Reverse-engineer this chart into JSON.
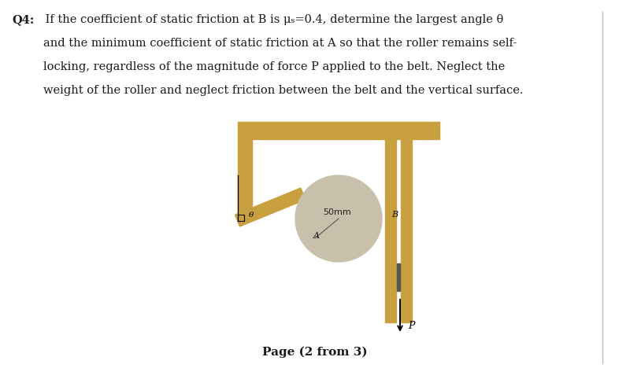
{
  "title_bold": "Q4:",
  "title_text": " If the coefficient of static friction at B is μₛ=0.4, determine the largest angle θ",
  "line2": "and the minimum coefficient of static friction at A so that the roller remains self-",
  "line3": "locking, regardless of the magnitude of force P applied to the belt. Neglect the",
  "line4": "weight of the roller and neglect friction between the belt and the vertical surface.",
  "page_label": "Page (2 from 3)",
  "bg_color": "#ffffff",
  "text_color": "#1a1a1a",
  "roller_color": "#c9c0ac",
  "belt_color": "#c8a040",
  "label_50mm": "50mm",
  "label_A": "A",
  "label_B": "B",
  "label_P": "P",
  "label_theta": "θ",
  "right_edge_color": "#bbbbbb"
}
